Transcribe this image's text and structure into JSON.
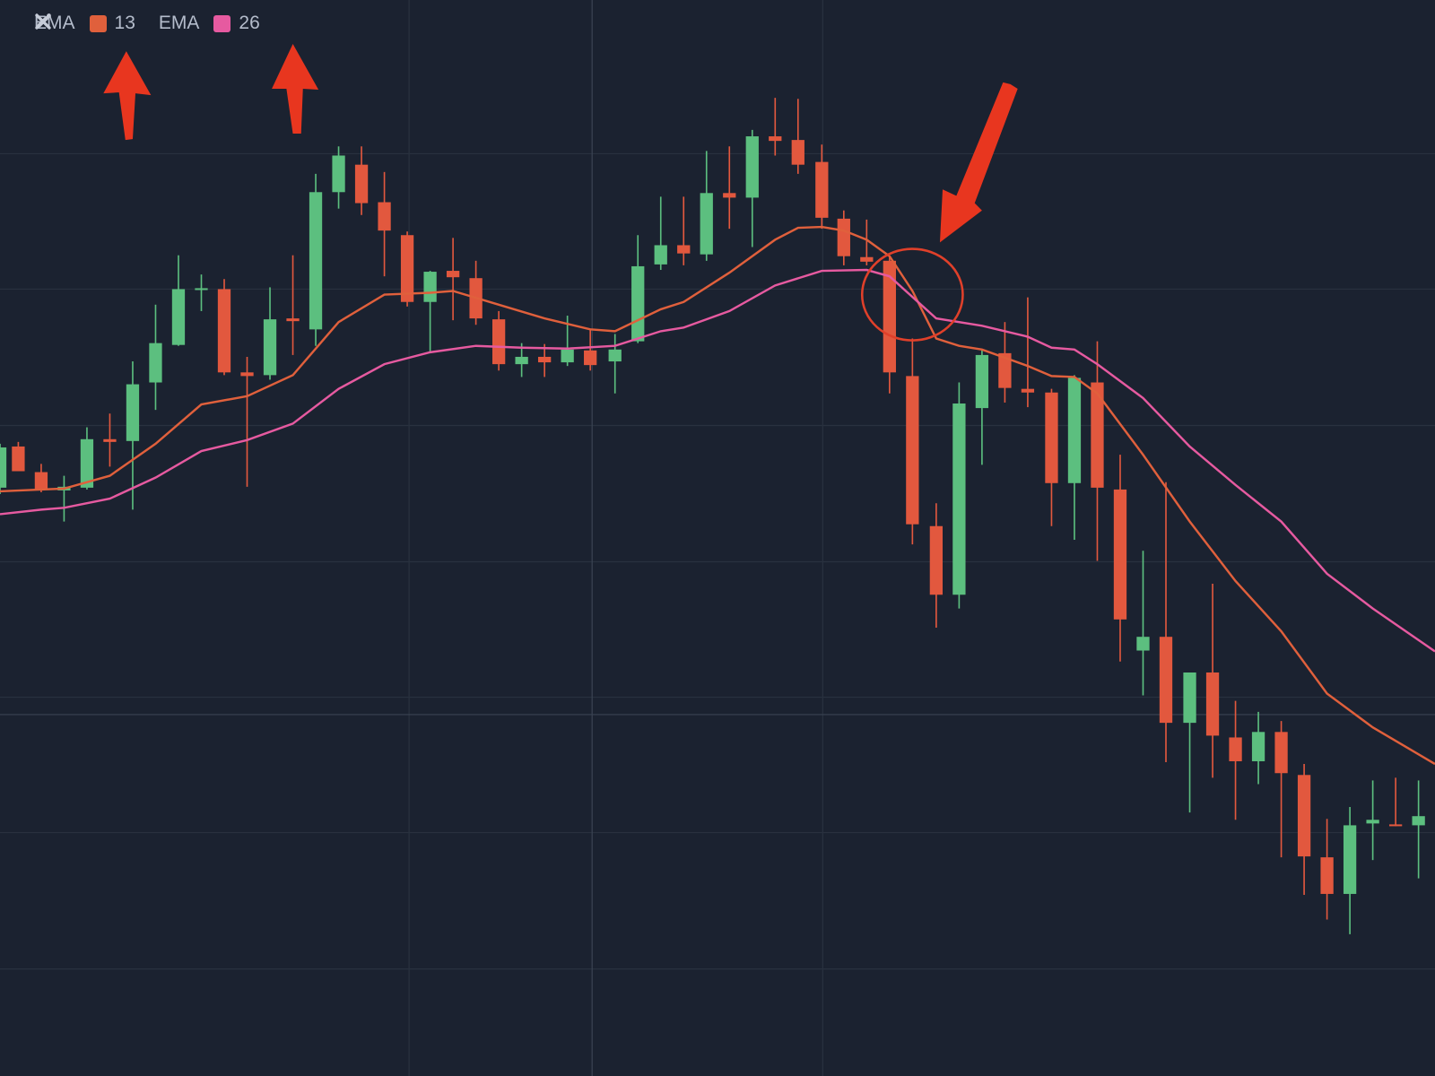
{
  "indicators": [
    {
      "label": "EMA",
      "period": 13,
      "color": "#e0603c"
    },
    {
      "label": "EMA",
      "period": 26,
      "color": "#e65aa0"
    }
  ]
}
